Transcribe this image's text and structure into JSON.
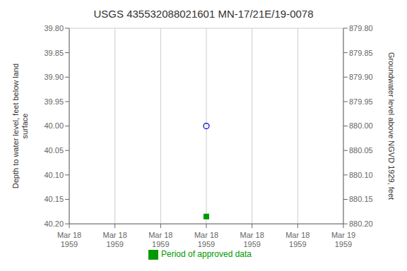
{
  "chart_data": {
    "type": "scatter",
    "title": "USGS 435532088021601 MN-17/21E/19-0078",
    "y_label": "Depth to water level, feet below land\nsurface",
    "y2_label": "Groundwater level above NGVD 1929, feet",
    "categories": [
      "Mar 18\n1959",
      "Mar 18\n1959",
      "Mar 18\n1959",
      "Mar 18\n1959",
      "Mar 18\n1959",
      "Mar 18\n1959",
      "Mar 19\n1959"
    ],
    "series": [
      {
        "color": "#0000cc",
        "marker": "open_circle",
        "values": [
          null,
          null,
          null,
          40,
          null,
          null,
          null
        ]
      },
      {
        "name": "Period of approved data",
        "color": "#009900",
        "marker": "square",
        "values": [
          null,
          null,
          null,
          40.185,
          null,
          null,
          null
        ]
      }
    ],
    "ylim": [
      40.2,
      39.8
    ],
    "yticks": [
      {
        "value": 39.8,
        "label": "39.80"
      },
      {
        "value": 39.85,
        "label": "39.85"
      },
      {
        "value": 39.9,
        "label": "39.90"
      },
      {
        "value": 39.95,
        "label": "39.95"
      },
      {
        "value": 40,
        "label": "40.00"
      },
      {
        "value": 40.05,
        "label": "40.05"
      },
      {
        "value": 40.1,
        "label": "40.10"
      },
      {
        "value": 40.15,
        "label": "40.15"
      },
      {
        "value": 40.2,
        "label": "40.20"
      }
    ],
    "y2lim": [
      880.2,
      879.8
    ],
    "y2ticks": [
      {
        "value": 879.8,
        "label": "879.80"
      },
      {
        "value": 879.85,
        "label": "879.85"
      },
      {
        "value": 879.9,
        "label": "879.90"
      },
      {
        "value": 879.95,
        "label": "879.95"
      },
      {
        "value": 880,
        "label": "880.00"
      },
      {
        "value": 880.05,
        "label": "880.05"
      },
      {
        "value": 880.1,
        "label": "880.10"
      },
      {
        "value": 880.15,
        "label": "880.15"
      },
      {
        "value": 880.2,
        "label": "880.20"
      }
    ],
    "grid": true,
    "legend": "bottom"
  }
}
